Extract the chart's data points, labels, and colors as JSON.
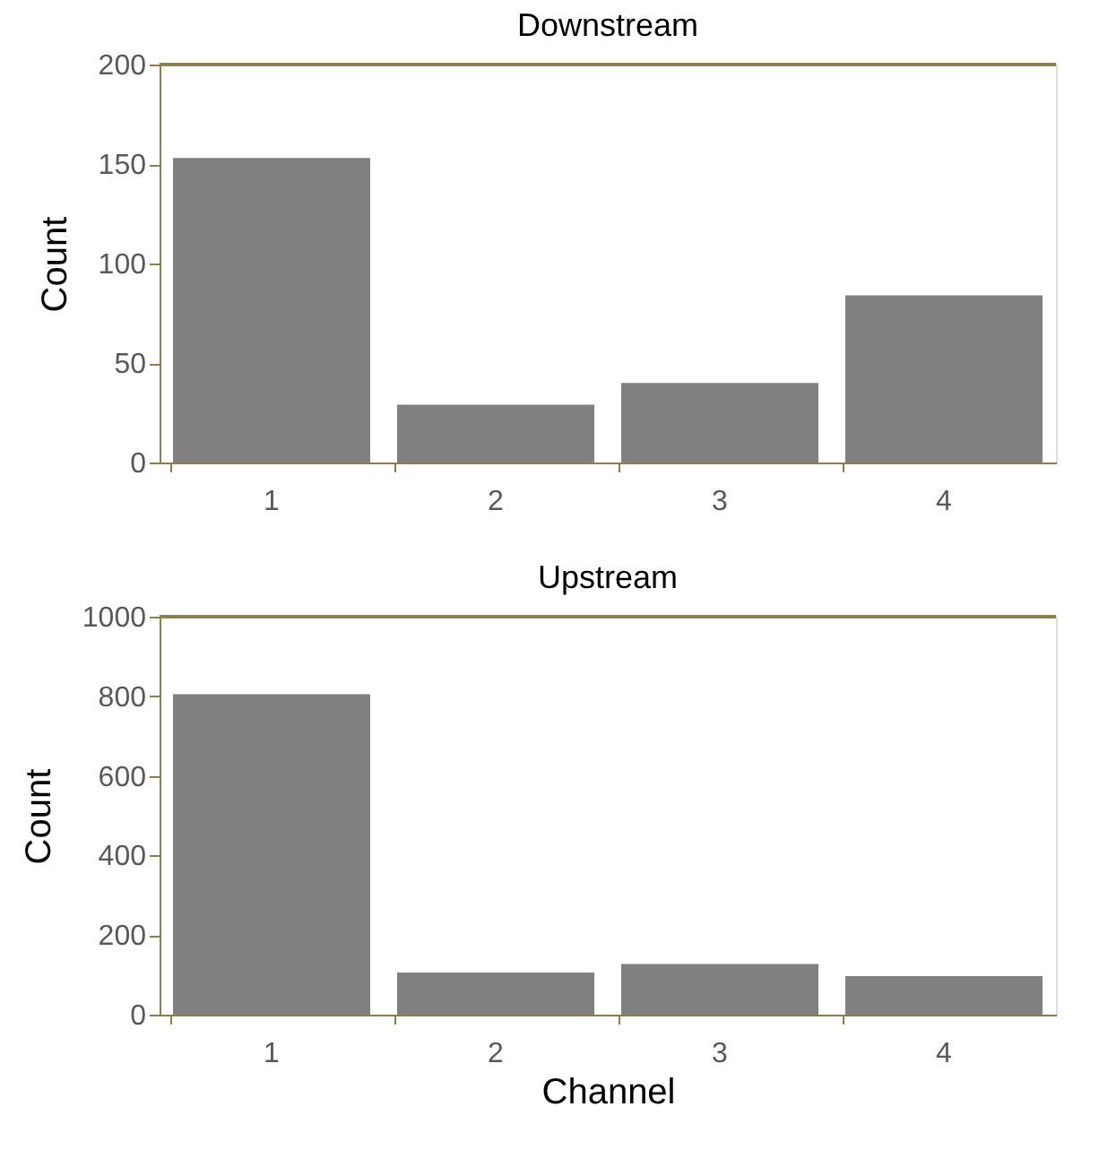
{
  "chart_data": [
    {
      "type": "bar",
      "title": "Downstream",
      "ylabel": "Count",
      "categories": [
        "1",
        "2",
        "3",
        "4"
      ],
      "values": [
        153,
        29,
        40,
        84
      ],
      "color": "#808080",
      "ylim": [
        0,
        200
      ],
      "yticks": [
        0,
        50,
        100,
        150,
        200
      ],
      "grid": false
    },
    {
      "type": "bar",
      "title": "Upstream",
      "ylabel": "Count",
      "xlabel": "Channel",
      "categories": [
        "1",
        "2",
        "3",
        "4"
      ],
      "values": [
        805,
        106,
        127,
        97
      ],
      "color": "#808080",
      "ylim": [
        0,
        1000
      ],
      "yticks": [
        0,
        200,
        400,
        600,
        800,
        1000
      ],
      "grid": false
    }
  ]
}
